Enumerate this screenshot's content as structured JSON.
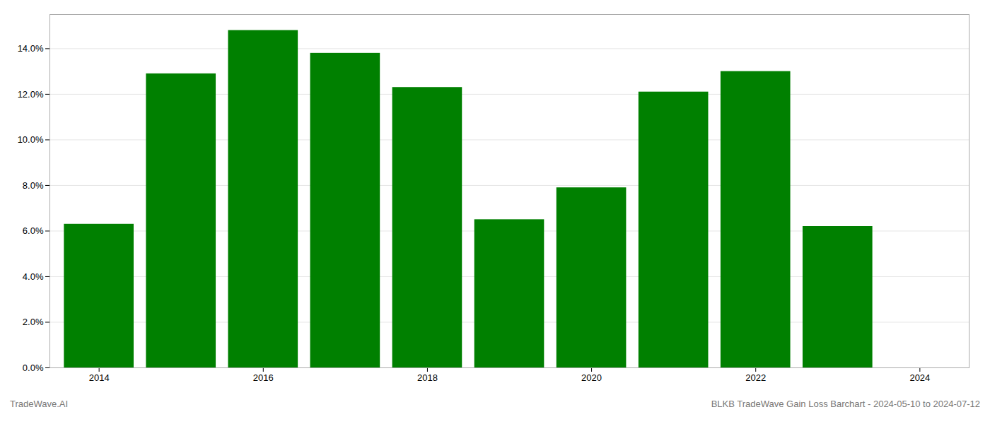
{
  "chart_data": {
    "type": "bar",
    "x": [
      2014,
      2015,
      2016,
      2017,
      2018,
      2019,
      2020,
      2021,
      2022,
      2023
    ],
    "values": [
      0.063,
      0.129,
      0.148,
      0.138,
      0.123,
      0.065,
      0.079,
      0.121,
      0.13,
      0.062
    ],
    "color": "#008000",
    "xlim": [
      2013.4,
      2024.6
    ],
    "xticks": [
      2014,
      2016,
      2018,
      2020,
      2022,
      2024
    ],
    "ylim": [
      0,
      0.155
    ],
    "yticks": [
      {
        "value": 0.0,
        "label": "0.0%"
      },
      {
        "value": 0.02,
        "label": "2.0%"
      },
      {
        "value": 0.04,
        "label": "4.0%"
      },
      {
        "value": 0.06,
        "label": "6.0%"
      },
      {
        "value": 0.08,
        "label": "8.0%"
      },
      {
        "value": 0.1,
        "label": "10.0%"
      },
      {
        "value": 0.12,
        "label": "12.0%"
      },
      {
        "value": 0.14,
        "label": "14.0%"
      }
    ],
    "grid": true,
    "annotations": [
      "TradeWave.AI",
      "BLKB TradeWave Gain Loss Barchart - 2024-05-10 to 2024-07-12"
    ]
  }
}
